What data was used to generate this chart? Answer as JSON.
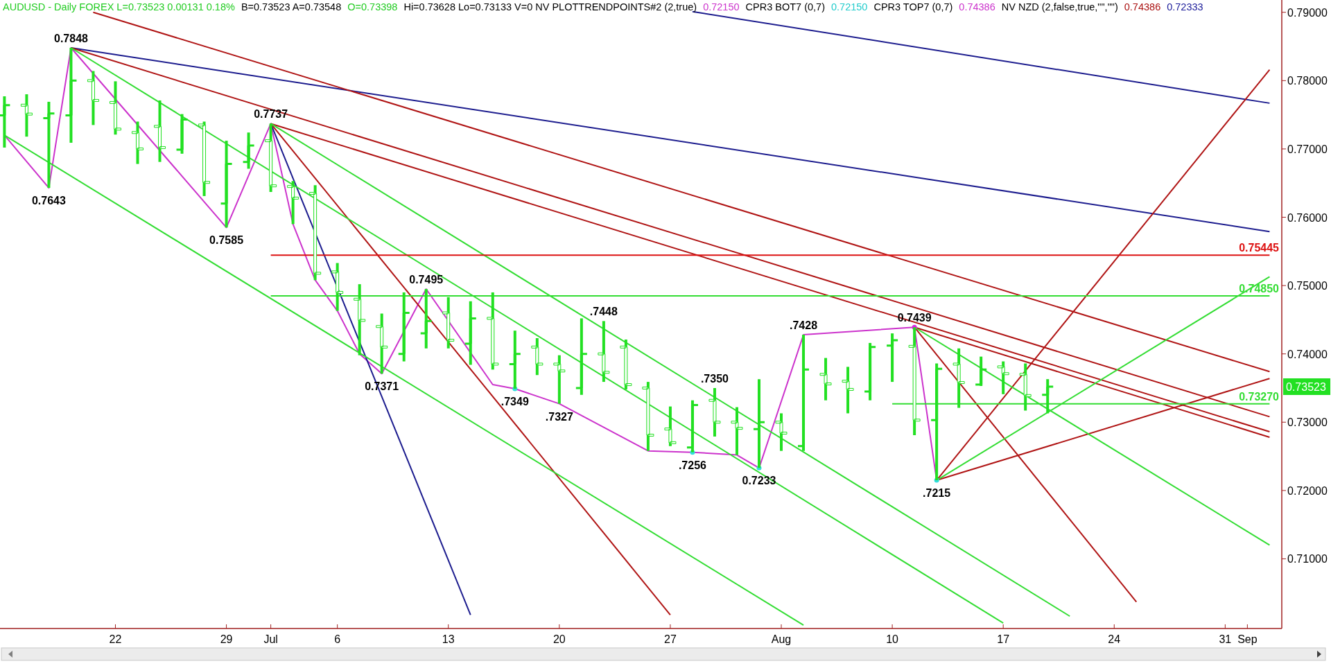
{
  "chart_data": {
    "type": "candlestick",
    "title": "AUDUSD - Daily FOREX L=0.73523 0.00131 0.18%",
    "color": "#22e022",
    "categories": [
      null,
      null,
      null,
      null,
      null,
      "22",
      null,
      null,
      null,
      null,
      "29",
      null,
      "Jul",
      null,
      null,
      "6",
      null,
      null,
      null,
      null,
      "13",
      null,
      null,
      null,
      null,
      "20",
      null,
      null,
      null,
      null,
      "27",
      null,
      null,
      null,
      null,
      "Aug",
      null,
      null,
      null,
      null,
      "10",
      null,
      null,
      null,
      null,
      "17",
      null,
      null,
      null,
      null,
      "24",
      null,
      null,
      null,
      null,
      "31",
      "Sep",
      null
    ],
    "ohlc": [
      [
        0.7749,
        0.7777,
        0.7702,
        0.7764
      ],
      [
        0.7764,
        0.778,
        0.7718,
        0.7751
      ],
      [
        0.7745,
        0.7769,
        0.7643,
        0.7752
      ],
      [
        0.7749,
        0.7848,
        0.7709,
        0.78
      ],
      [
        0.78,
        0.7814,
        0.7735,
        0.7771
      ],
      [
        0.7768,
        0.7799,
        0.7721,
        0.7729
      ],
      [
        0.7724,
        0.774,
        0.7678,
        0.77
      ],
      [
        0.7733,
        0.7771,
        0.7681,
        0.7702
      ],
      [
        0.7699,
        0.7751,
        0.7693,
        0.7743
      ],
      [
        0.7735,
        0.774,
        0.7631,
        0.7651
      ],
      [
        0.762,
        0.7712,
        0.7585,
        0.7678
      ],
      [
        0.7681,
        0.7724,
        0.7671,
        0.7705
      ],
      [
        0.7712,
        0.7737,
        0.7637,
        0.7646
      ],
      [
        0.7645,
        0.7653,
        0.759,
        0.7628
      ],
      [
        0.7635,
        0.7647,
        0.7508,
        0.7518
      ],
      [
        0.752,
        0.7533,
        0.7463,
        0.749
      ],
      [
        0.748,
        0.7502,
        0.7398,
        0.7449
      ],
      [
        0.744,
        0.7459,
        0.7371,
        0.741
      ],
      [
        0.74,
        0.749,
        0.7389,
        0.746
      ],
      [
        0.743,
        0.7495,
        0.7408,
        0.7448
      ],
      [
        0.746,
        0.7483,
        0.7408,
        0.742
      ],
      [
        0.7415,
        0.7477,
        0.7384,
        0.7452
      ],
      [
        0.7452,
        0.749,
        0.7377,
        0.7385
      ],
      [
        0.7385,
        0.7434,
        0.7349,
        0.74
      ],
      [
        0.741,
        0.7423,
        0.7369,
        0.7385
      ],
      [
        0.7385,
        0.7398,
        0.7327,
        0.7375
      ],
      [
        0.735,
        0.7452,
        0.734,
        0.74
      ],
      [
        0.74,
        0.7448,
        0.7359,
        0.7373
      ],
      [
        0.741,
        0.7421,
        0.7348,
        0.7355
      ],
      [
        0.735,
        0.7359,
        0.7258,
        0.7281
      ],
      [
        0.729,
        0.7323,
        0.7265,
        0.727
      ],
      [
        0.7263,
        0.7332,
        0.7256,
        0.7325
      ],
      [
        0.7332,
        0.735,
        0.7279,
        0.73
      ],
      [
        0.73,
        0.7322,
        0.7252,
        0.7291
      ],
      [
        0.729,
        0.7363,
        0.7233,
        0.73
      ],
      [
        0.73,
        0.7313,
        0.7258,
        0.7284
      ],
      [
        0.7265,
        0.7428,
        0.7258,
        0.7377
      ],
      [
        0.737,
        0.7394,
        0.7332,
        0.7356
      ],
      [
        0.736,
        0.7381,
        0.7313,
        0.7348
      ],
      [
        0.7345,
        0.7416,
        0.7332,
        0.741
      ],
      [
        0.7412,
        0.743,
        0.7359,
        0.742
      ],
      [
        0.7411,
        0.7439,
        0.7281,
        0.7303
      ],
      [
        0.7303,
        0.7386,
        0.7215,
        0.7378
      ],
      [
        0.7385,
        0.7408,
        0.7321,
        0.7358
      ],
      [
        0.7355,
        0.7396,
        0.7353,
        0.7377
      ],
      [
        0.7381,
        0.7389,
        0.7341,
        0.7371
      ],
      [
        0.737,
        0.7386,
        0.7317,
        0.7339
      ],
      [
        0.734,
        0.7363,
        0.7313,
        0.7352
      ],
      null,
      null,
      null,
      null,
      null,
      null,
      null,
      null,
      null,
      null
    ],
    "ylim": [
      0.6998,
      0.7918
    ],
    "yticks": [
      {
        "value": 0.71,
        "label": "0.71000"
      },
      {
        "value": 0.72,
        "label": "0.72000"
      },
      {
        "value": 0.73,
        "label": "0.73000"
      },
      {
        "value": 0.74,
        "label": "0.74000"
      },
      {
        "value": 0.75,
        "label": "0.75000"
      },
      {
        "value": 0.76,
        "label": "0.76000"
      },
      {
        "value": 0.77,
        "label": "0.77000"
      },
      {
        "value": 0.78,
        "label": "0.78000"
      },
      {
        "value": 0.79,
        "label": "0.79000"
      }
    ],
    "series": [
      {
        "type": "line",
        "color": "#cc33cc",
        "values": [
          0.772,
          null,
          0.7643,
          0.7848,
          null,
          null,
          null,
          null,
          null,
          null,
          0.7585,
          null,
          0.7737,
          0.759,
          0.7508,
          0.7463,
          0.74,
          0.7371,
          null,
          0.7495,
          null,
          null,
          0.7355,
          0.7349,
          null,
          0.7327,
          null,
          null,
          null,
          0.7258,
          null,
          0.7256,
          null,
          0.7252,
          0.7233,
          null,
          0.7428,
          null,
          null,
          null,
          null,
          0.7439,
          0.7215,
          null,
          null,
          null,
          null,
          null,
          null,
          null,
          null,
          null,
          null,
          null,
          null,
          null,
          null,
          null
        ]
      },
      {
        "type": "scatter",
        "marker": "circle",
        "color": "#33dddd",
        "values": [
          null,
          null,
          null,
          null,
          null,
          null,
          null,
          null,
          null,
          null,
          null,
          null,
          null,
          null,
          null,
          null,
          null,
          null,
          null,
          null,
          null,
          null,
          null,
          0.7349,
          null,
          null,
          null,
          null,
          null,
          null,
          null,
          0.7256,
          null,
          null,
          0.7233,
          null,
          null,
          null,
          null,
          null,
          null,
          null,
          0.7215,
          null,
          null,
          null,
          null,
          null,
          null,
          null,
          null,
          null,
          null,
          null,
          null,
          null,
          null,
          null
        ]
      },
      {
        "type": "scatter",
        "marker": "circle",
        "color": "#dd22dd",
        "values": [
          null,
          null,
          null,
          null,
          null,
          null,
          null,
          null,
          null,
          null,
          null,
          null,
          null,
          null,
          null,
          null,
          null,
          null,
          null,
          null,
          null,
          null,
          null,
          null,
          null,
          null,
          null,
          null,
          null,
          null,
          null,
          null,
          null,
          null,
          null,
          null,
          null,
          null,
          null,
          null,
          null,
          0.7439,
          null,
          null,
          null,
          null,
          null,
          null,
          null,
          null,
          null,
          null,
          null,
          null,
          null,
          null,
          null,
          null
        ]
      },
      {
        "type": "line",
        "color": "#1c1c8e",
        "values": [
          null,
          null,
          null,
          0.7848,
          null,
          null,
          null,
          null,
          null,
          null,
          null,
          null,
          null,
          null,
          null,
          null,
          null,
          null,
          null,
          null,
          null,
          null,
          null,
          null,
          null,
          null,
          null,
          null,
          null,
          null,
          null,
          null,
          null,
          null,
          null,
          null,
          null,
          null,
          null,
          null,
          null,
          null,
          null,
          null,
          null,
          null,
          null,
          null,
          null,
          null,
          null,
          null,
          null,
          null,
          null,
          null,
          null,
          0.7579
        ]
      },
      {
        "type": "line",
        "color": "#1c1c8e",
        "values": [
          null,
          null,
          null,
          null,
          null,
          null,
          null,
          null,
          null,
          null,
          null,
          null,
          null,
          null,
          null,
          null,
          null,
          null,
          null,
          null,
          null,
          null,
          null,
          null,
          null,
          null,
          null,
          null,
          null,
          null,
          null,
          0.7901,
          null,
          null,
          null,
          null,
          null,
          null,
          null,
          null,
          null,
          null,
          null,
          null,
          null,
          null,
          null,
          null,
          null,
          null,
          null,
          null,
          null,
          null,
          null,
          null,
          null,
          0.7767
        ]
      },
      {
        "type": "line",
        "color": "#1c1c8e",
        "values": [
          null,
          null,
          null,
          null,
          null,
          null,
          null,
          null,
          null,
          null,
          null,
          null,
          0.7737,
          null,
          null,
          null,
          null,
          null,
          null,
          null,
          null,
          0.7018,
          null,
          null,
          null,
          null,
          null,
          null,
          null,
          null,
          null,
          null,
          null,
          null,
          null,
          null,
          null,
          null,
          null,
          null,
          null,
          null,
          null,
          null,
          null,
          null,
          null,
          null,
          null,
          null,
          null,
          null,
          null,
          null,
          null,
          null,
          null,
          null
        ]
      },
      {
        "type": "line",
        "color": "#b01515",
        "values": [
          null,
          null,
          null,
          null,
          0.79,
          null,
          null,
          null,
          null,
          null,
          null,
          null,
          null,
          null,
          null,
          null,
          null,
          null,
          null,
          null,
          null,
          null,
          null,
          null,
          null,
          null,
          null,
          null,
          null,
          null,
          null,
          null,
          null,
          null,
          null,
          null,
          null,
          null,
          null,
          null,
          null,
          null,
          null,
          null,
          null,
          null,
          null,
          null,
          null,
          null,
          null,
          null,
          null,
          null,
          null,
          null,
          null,
          0.7374
        ]
      },
      {
        "type": "line",
        "color": "#b01515",
        "values": [
          null,
          null,
          null,
          0.7848,
          null,
          null,
          null,
          null,
          null,
          null,
          null,
          null,
          null,
          null,
          null,
          null,
          null,
          null,
          null,
          null,
          null,
          null,
          null,
          null,
          null,
          null,
          null,
          null,
          null,
          null,
          null,
          null,
          null,
          null,
          null,
          null,
          null,
          null,
          null,
          null,
          null,
          null,
          null,
          null,
          null,
          null,
          null,
          null,
          null,
          null,
          null,
          null,
          null,
          null,
          null,
          null,
          null,
          0.7308
        ]
      },
      {
        "type": "line",
        "color": "#b01515",
        "values": [
          null,
          null,
          null,
          null,
          null,
          null,
          null,
          null,
          null,
          null,
          null,
          null,
          0.7737,
          null,
          null,
          null,
          null,
          null,
          null,
          null,
          null,
          null,
          null,
          null,
          null,
          null,
          null,
          null,
          null,
          null,
          null,
          null,
          null,
          null,
          null,
          null,
          null,
          null,
          null,
          null,
          null,
          null,
          null,
          null,
          null,
          null,
          null,
          null,
          null,
          null,
          null,
          null,
          null,
          null,
          null,
          null,
          null,
          0.7286
        ]
      },
      {
        "type": "line",
        "color": "#b01515",
        "values": [
          null,
          null,
          null,
          null,
          null,
          null,
          null,
          null,
          null,
          null,
          null,
          null,
          null,
          null,
          null,
          null,
          null,
          null,
          null,
          null,
          null,
          null,
          null,
          null,
          null,
          null,
          null,
          null,
          null,
          null,
          null,
          null,
          null,
          null,
          null,
          null,
          null,
          null,
          null,
          null,
          null,
          0.7439,
          null,
          null,
          null,
          null,
          null,
          null,
          null,
          null,
          null,
          null,
          null,
          null,
          null,
          null,
          null,
          0.7278
        ]
      },
      {
        "type": "line",
        "color": "#b01515",
        "values": [
          null,
          null,
          null,
          null,
          null,
          null,
          null,
          null,
          null,
          null,
          null,
          null,
          0.7737,
          null,
          null,
          null,
          null,
          null,
          null,
          null,
          null,
          null,
          null,
          null,
          null,
          null,
          null,
          null,
          null,
          null,
          0.7018,
          null,
          null,
          null,
          null,
          null,
          null,
          null,
          null,
          null,
          null,
          null,
          null,
          null,
          null,
          null,
          null,
          null,
          null,
          null,
          null,
          null,
          null,
          null,
          null,
          null,
          null,
          null
        ]
      },
      {
        "type": "line",
        "color": "#b01515",
        "values": [
          null,
          null,
          null,
          null,
          null,
          null,
          null,
          null,
          null,
          null,
          null,
          null,
          null,
          null,
          null,
          null,
          null,
          null,
          null,
          null,
          null,
          null,
          null,
          null,
          null,
          null,
          null,
          null,
          null,
          null,
          null,
          null,
          null,
          null,
          null,
          null,
          null,
          null,
          null,
          null,
          null,
          0.7439,
          null,
          null,
          null,
          null,
          null,
          null,
          null,
          null,
          null,
          0.7037,
          null,
          null,
          null,
          null,
          null,
          null
        ]
      },
      {
        "type": "line",
        "color": "#b01515",
        "values": [
          null,
          null,
          null,
          null,
          null,
          null,
          null,
          null,
          null,
          null,
          null,
          null,
          null,
          null,
          null,
          null,
          null,
          null,
          null,
          null,
          null,
          null,
          null,
          null,
          null,
          null,
          null,
          null,
          null,
          null,
          null,
          null,
          null,
          null,
          null,
          null,
          null,
          null,
          null,
          null,
          null,
          null,
          0.7215,
          null,
          null,
          null,
          null,
          null,
          null,
          null,
          null,
          null,
          null,
          null,
          null,
          null,
          null,
          0.7816
        ]
      },
      {
        "type": "line",
        "color": "#b01515",
        "values": [
          null,
          null,
          null,
          null,
          null,
          null,
          null,
          null,
          null,
          null,
          null,
          null,
          null,
          null,
          null,
          null,
          null,
          null,
          null,
          null,
          null,
          null,
          null,
          null,
          null,
          null,
          null,
          null,
          null,
          null,
          null,
          null,
          null,
          null,
          null,
          null,
          null,
          null,
          null,
          null,
          null,
          null,
          0.7215,
          null,
          null,
          null,
          null,
          null,
          null,
          null,
          null,
          null,
          null,
          null,
          null,
          null,
          null,
          0.7364
        ]
      },
      {
        "type": "line",
        "color": "#33dd33",
        "values": [
          0.772,
          null,
          null,
          null,
          null,
          null,
          null,
          null,
          null,
          null,
          null,
          null,
          null,
          null,
          null,
          null,
          null,
          null,
          null,
          null,
          null,
          null,
          null,
          null,
          null,
          null,
          null,
          null,
          null,
          null,
          null,
          null,
          null,
          null,
          null,
          null,
          0.7003,
          null,
          null,
          null,
          null,
          null,
          null,
          null,
          null,
          null,
          null,
          null,
          null,
          null,
          null,
          null,
          null,
          null,
          null,
          null,
          null,
          null
        ]
      },
      {
        "type": "line",
        "color": "#33dd33",
        "values": [
          null,
          null,
          null,
          0.7848,
          null,
          null,
          null,
          null,
          null,
          null,
          null,
          null,
          null,
          null,
          null,
          null,
          null,
          null,
          null,
          null,
          null,
          null,
          null,
          null,
          null,
          null,
          null,
          null,
          null,
          null,
          null,
          null,
          null,
          null,
          null,
          null,
          null,
          null,
          null,
          null,
          null,
          null,
          null,
          null,
          null,
          0.7006,
          null,
          null,
          null,
          null,
          null,
          null,
          null,
          null,
          null,
          null,
          null,
          null
        ]
      },
      {
        "type": "line",
        "color": "#33dd33",
        "values": [
          null,
          null,
          null,
          null,
          null,
          null,
          null,
          null,
          null,
          null,
          null,
          null,
          0.7737,
          null,
          null,
          null,
          null,
          null,
          null,
          null,
          null,
          null,
          null,
          null,
          null,
          null,
          null,
          null,
          null,
          null,
          null,
          null,
          null,
          null,
          null,
          null,
          null,
          null,
          null,
          null,
          null,
          null,
          null,
          null,
          null,
          null,
          null,
          null,
          0.7016,
          null,
          null,
          null,
          null,
          null,
          null,
          null,
          null,
          null
        ]
      },
      {
        "type": "line",
        "color": "#33dd33",
        "values": [
          null,
          null,
          null,
          null,
          null,
          null,
          null,
          null,
          null,
          null,
          null,
          null,
          null,
          null,
          null,
          null,
          null,
          null,
          null,
          null,
          null,
          null,
          null,
          null,
          null,
          null,
          null,
          null,
          null,
          null,
          null,
          null,
          null,
          null,
          null,
          null,
          null,
          null,
          null,
          null,
          null,
          0.7439,
          null,
          null,
          null,
          null,
          null,
          null,
          null,
          null,
          null,
          null,
          null,
          null,
          null,
          null,
          null,
          0.712
        ]
      },
      {
        "type": "line",
        "color": "#33dd33",
        "values": [
          null,
          null,
          null,
          null,
          null,
          null,
          null,
          null,
          null,
          null,
          null,
          null,
          null,
          null,
          null,
          null,
          null,
          null,
          null,
          null,
          null,
          null,
          null,
          null,
          null,
          null,
          null,
          null,
          null,
          null,
          null,
          null,
          null,
          null,
          null,
          null,
          null,
          null,
          null,
          null,
          null,
          null,
          0.7215,
          null,
          null,
          null,
          null,
          null,
          null,
          null,
          null,
          null,
          null,
          null,
          null,
          null,
          null,
          0.7513
        ]
      },
      {
        "type": "line",
        "color": "#33dd33",
        "values": [
          null,
          null,
          null,
          null,
          null,
          null,
          null,
          null,
          null,
          null,
          null,
          null,
          null,
          null,
          null,
          null,
          null,
          null,
          null,
          null,
          null,
          null,
          null,
          null,
          null,
          null,
          null,
          null,
          null,
          null,
          null,
          null,
          null,
          null,
          null,
          null,
          null,
          null,
          null,
          null,
          0.7327,
          null,
          null,
          null,
          null,
          null,
          null,
          null,
          null,
          null,
          null,
          null,
          null,
          null,
          null,
          null,
          null,
          0.7327
        ],
        "value_labels": [
          null,
          null,
          null,
          null,
          null,
          null,
          null,
          null,
          null,
          null,
          null,
          null,
          null,
          null,
          null,
          null,
          null,
          null,
          null,
          null,
          null,
          null,
          null,
          null,
          null,
          null,
          null,
          null,
          null,
          null,
          null,
          null,
          null,
          null,
          null,
          null,
          null,
          null,
          null,
          null,
          null,
          null,
          null,
          null,
          null,
          null,
          null,
          null,
          null,
          null,
          null,
          null,
          null,
          null,
          null,
          null,
          null,
          "0.73270"
        ]
      },
      {
        "type": "line",
        "color": "#33dd33",
        "values": [
          null,
          null,
          null,
          null,
          null,
          null,
          null,
          null,
          null,
          null,
          null,
          null,
          0.7485,
          null,
          null,
          null,
          null,
          null,
          null,
          null,
          null,
          null,
          null,
          null,
          null,
          null,
          null,
          null,
          null,
          null,
          null,
          null,
          null,
          null,
          null,
          null,
          null,
          null,
          null,
          null,
          null,
          null,
          null,
          null,
          null,
          null,
          null,
          null,
          null,
          null,
          null,
          null,
          null,
          null,
          null,
          null,
          null,
          0.7485
        ],
        "value_labels": [
          null,
          null,
          null,
          null,
          null,
          null,
          null,
          null,
          null,
          null,
          null,
          null,
          null,
          null,
          null,
          null,
          null,
          null,
          null,
          null,
          null,
          null,
          null,
          null,
          null,
          null,
          null,
          null,
          null,
          null,
          null,
          null,
          null,
          null,
          null,
          null,
          null,
          null,
          null,
          null,
          null,
          null,
          null,
          null,
          null,
          null,
          null,
          null,
          null,
          null,
          null,
          null,
          null,
          null,
          null,
          null,
          null,
          "0.74850"
        ]
      },
      {
        "type": "line",
        "color": "#dd1111",
        "values": [
          null,
          null,
          null,
          null,
          null,
          null,
          null,
          null,
          null,
          null,
          null,
          null,
          0.75445,
          null,
          null,
          null,
          null,
          null,
          null,
          null,
          null,
          null,
          null,
          null,
          null,
          null,
          null,
          null,
          null,
          null,
          null,
          null,
          null,
          null,
          null,
          null,
          null,
          null,
          null,
          null,
          null,
          null,
          null,
          null,
          null,
          null,
          null,
          null,
          null,
          null,
          null,
          null,
          null,
          null,
          null,
          null,
          null,
          0.75445
        ],
        "value_labels": [
          null,
          null,
          null,
          null,
          null,
          null,
          null,
          null,
          null,
          null,
          null,
          null,
          null,
          null,
          null,
          null,
          null,
          null,
          null,
          null,
          null,
          null,
          null,
          null,
          null,
          null,
          null,
          null,
          null,
          null,
          null,
          null,
          null,
          null,
          null,
          null,
          null,
          null,
          null,
          null,
          null,
          null,
          null,
          null,
          null,
          null,
          null,
          null,
          null,
          null,
          null,
          null,
          null,
          null,
          null,
          null,
          null,
          "0.75445"
        ]
      }
    ],
    "annotations": [
      "B=0.73523 A=0.73548",
      "O=0.73398",
      "Hi=0.73628 Lo=0.73133 V=0 NV PLOTTRENDPOINTS#2 (2,true)",
      "0.72150",
      "CPR3 BOT7 (0,7)",
      "0.72150",
      "CPR3 TOP7 (0,7)",
      "0.74386",
      "NV NZD (2,false,true,\"\",\"\")",
      "0.74386",
      "0.72333",
      "0.73523",
      {
        "text": "0.7848",
        "y": 0.7848
      },
      {
        "text": "0.7643",
        "y": 0.7643
      },
      {
        "text": "0.7585",
        "y": 0.7585
      },
      {
        "text": "0.7737",
        "y": 0.7737
      },
      {
        "text": "0.7371",
        "y": 0.7371
      },
      {
        "text": "0.7495",
        "y": 0.7495
      },
      {
        "text": ".7349",
        "y": 0.7349
      },
      {
        "text": ".7327",
        "y": 0.7327
      },
      {
        "text": ".7448",
        "y": 0.7448
      },
      {
        "text": ".7256",
        "y": 0.7256
      },
      {
        "text": ".7350",
        "y": 0.735
      },
      {
        "text": "0.7233",
        "y": 0.7233
      },
      {
        "text": ".7428",
        "y": 0.7428
      },
      {
        "text": "0.7439",
        "y": 0.7439
      },
      {
        "text": ".7215",
        "y": 0.7215
      }
    ]
  }
}
